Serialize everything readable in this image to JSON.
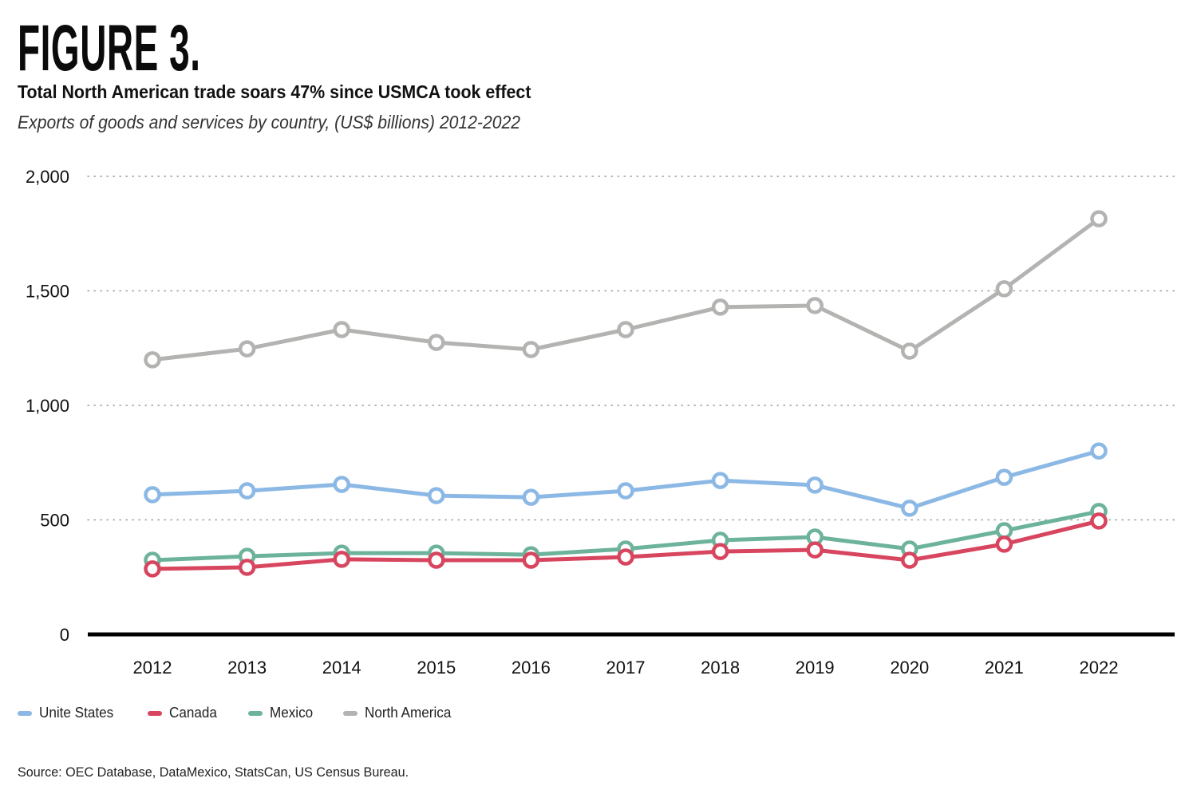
{
  "figure_label": "FIGURE 3.",
  "title": "Total North American trade soars 47% since USMCA took effect",
  "subtitle": "Exports of goods and services by country, (US$ billions) 2012-2022",
  "source": "Source: OEC Database, DataMexico, StatsCan, US Census Bureau.",
  "legend": [
    {
      "label": "Unite States",
      "color": "#8bb8e4"
    },
    {
      "label": "Canada",
      "color": "#d7455f"
    },
    {
      "label": "Mexico",
      "color": "#6db39c"
    },
    {
      "label": "North America",
      "color": "#b3b3b1"
    }
  ],
  "chart_data": {
    "type": "line",
    "title": "Total North American trade soars 47% since USMCA took effect",
    "subtitle": "Exports of goods and services by country, (US$ billions) 2012-2022",
    "xlabel": "",
    "ylabel": "US$ billions",
    "x": [
      "2012",
      "2013",
      "2014",
      "2015",
      "2016",
      "2017",
      "2018",
      "2019",
      "2020",
      "2021",
      "2022"
    ],
    "ylim": [
      0,
      2000
    ],
    "yticks": [
      0,
      500,
      1000,
      1500,
      2000
    ],
    "ytick_labels": [
      "0",
      "500",
      "1,000",
      "1,500",
      "2,000"
    ],
    "grid": "horizontal-dotted",
    "legend_position": "bottom-left",
    "series": [
      {
        "name": "Unite States",
        "color": "#8bb8e4",
        "values": [
          610,
          627,
          655,
          606,
          599,
          627,
          672,
          652,
          551,
          686,
          801
        ]
      },
      {
        "name": "Canada",
        "color": "#d7455f",
        "values": [
          286,
          293,
          328,
          324,
          324,
          338,
          362,
          369,
          324,
          394,
          495
        ]
      },
      {
        "name": "Mexico",
        "color": "#6db39c",
        "values": [
          324,
          341,
          355,
          355,
          348,
          373,
          411,
          425,
          373,
          453,
          537
        ]
      },
      {
        "name": "North America",
        "color": "#b3b3b1",
        "values": [
          1199,
          1247,
          1331,
          1275,
          1244,
          1331,
          1429,
          1436,
          1237,
          1509,
          1815
        ]
      }
    ]
  }
}
